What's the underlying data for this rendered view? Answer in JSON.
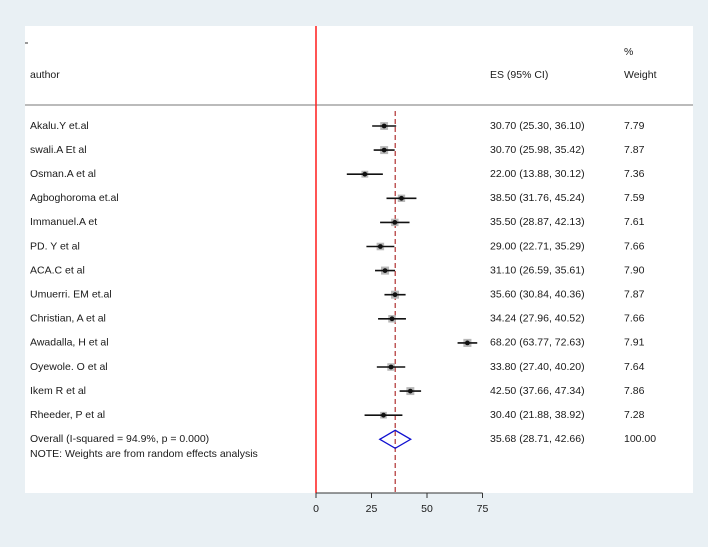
{
  "chart_data": {
    "type": "forest",
    "header": {
      "author": "author",
      "es": "ES (95% CI)",
      "weight_pct": "%",
      "weight": "Weight"
    },
    "studies": [
      {
        "author": "Akalu.Y et.al",
        "es": 30.7,
        "lo": 25.3,
        "hi": 36.1,
        "ci_text": "30.70 (25.30, 36.10)",
        "weight": "7.79"
      },
      {
        "author": "swali.A Et al",
        "es": 30.7,
        "lo": 25.98,
        "hi": 35.42,
        "ci_text": "30.70 (25.98, 35.42)",
        "weight": "7.87"
      },
      {
        "author": "Osman.A et al",
        "es": 22.0,
        "lo": 13.88,
        "hi": 30.12,
        "ci_text": "22.00 (13.88, 30.12)",
        "weight": "7.36"
      },
      {
        "author": "Agboghoroma et.al",
        "es": 38.5,
        "lo": 31.76,
        "hi": 45.24,
        "ci_text": "38.50 (31.76, 45.24)",
        "weight": "7.59"
      },
      {
        "author": "Immanuel.A et",
        "es": 35.5,
        "lo": 28.87,
        "hi": 42.13,
        "ci_text": "35.50 (28.87, 42.13)",
        "weight": "7.61"
      },
      {
        "author": "PD. Y et al",
        "es": 29.0,
        "lo": 22.71,
        "hi": 35.29,
        "ci_text": "29.00 (22.71, 35.29)",
        "weight": "7.66"
      },
      {
        "author": "ACA.C et al",
        "es": 31.1,
        "lo": 26.59,
        "hi": 35.61,
        "ci_text": "31.10 (26.59, 35.61)",
        "weight": "7.90"
      },
      {
        "author": "Umuerri. EM et.al",
        "es": 35.6,
        "lo": 30.84,
        "hi": 40.36,
        "ci_text": "35.60 (30.84, 40.36)",
        "weight": "7.87"
      },
      {
        "author": "Christian, A et al",
        "es": 34.24,
        "lo": 27.96,
        "hi": 40.52,
        "ci_text": "34.24 (27.96, 40.52)",
        "weight": "7.66"
      },
      {
        "author": "Awadalla, H et al",
        "es": 68.2,
        "lo": 63.77,
        "hi": 72.63,
        "ci_text": "68.20 (63.77, 72.63)",
        "weight": "7.91"
      },
      {
        "author": "Oyewole. O et al",
        "es": 33.8,
        "lo": 27.4,
        "hi": 40.2,
        "ci_text": "33.80 (27.40, 40.20)",
        "weight": "7.64"
      },
      {
        "author": "Ikem R et al",
        "es": 42.5,
        "lo": 37.66,
        "hi": 47.34,
        "ci_text": "42.50 (37.66, 47.34)",
        "weight": "7.86"
      },
      {
        "author": "Rheeder, P et al",
        "es": 30.4,
        "lo": 21.88,
        "hi": 38.92,
        "ci_text": "30.40 (21.88, 38.92)",
        "weight": "7.28"
      }
    ],
    "overall": {
      "label": "Overall  (I-squared = 94.9%, p = 0.000)",
      "es": 35.68,
      "lo": 28.71,
      "hi": 42.66,
      "ci_text": "35.68 (28.71, 42.66)",
      "weight": "100.00"
    },
    "note": "NOTE: Weights are from random effects analysis",
    "x_ticks": [
      0,
      25,
      50,
      75
    ],
    "xlim": [
      0,
      75
    ],
    "null_line": 0,
    "colors": {
      "null_line": "#ff2a2a",
      "overall_line": "#b03030",
      "overall_diamond": "#1010d0",
      "ci_line": "#111111",
      "weight_box": "#b8b8b8",
      "background": "#e9f0f4",
      "plot_area": "#ffffff"
    }
  }
}
